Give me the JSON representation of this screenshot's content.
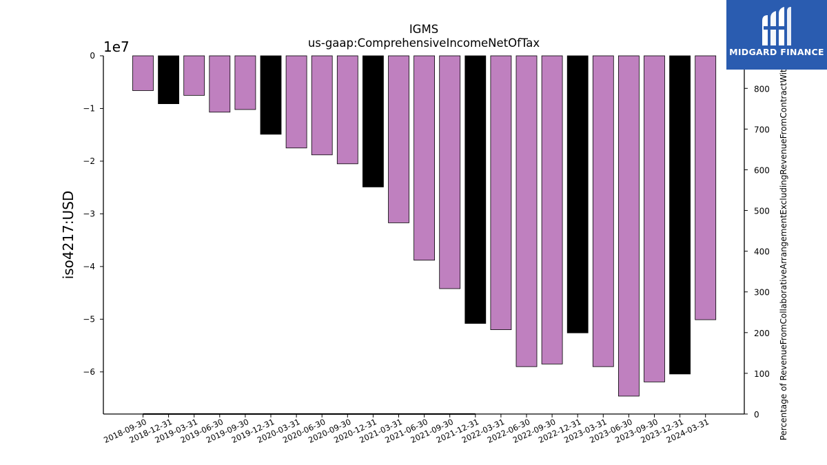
{
  "chart_data": {
    "type": "bar",
    "title": "IGMS",
    "subtitle": "us-gaap:ComprehensiveIncomeNetOfTax",
    "ylabel": "iso4217:USD",
    "y2label": "Percentage of RevenueFromCollaborativeArrangementExcludingRevenueFromContractWith",
    "offset_text": "1e7",
    "y_scale": 10000000,
    "ylim": [
      -68000000,
      0
    ],
    "yticks": [
      0,
      -1,
      -2,
      -3,
      -4,
      -5,
      -6
    ],
    "y2lim": [
      0,
      880
    ],
    "y2ticks": [
      0,
      100,
      200,
      300,
      400,
      500,
      600,
      700,
      800
    ],
    "categories": [
      "2018-09-30",
      "2018-12-31",
      "2019-03-31",
      "2019-06-30",
      "2019-09-30",
      "2019-12-31",
      "2020-03-31",
      "2020-06-30",
      "2020-09-30",
      "2020-12-31",
      "2021-03-31",
      "2021-06-30",
      "2021-09-30",
      "2021-12-31",
      "2022-03-31",
      "2022-06-30",
      "2022-09-30",
      "2022-12-31",
      "2023-03-31",
      "2023-06-30",
      "2023-09-30",
      "2023-12-31",
      "2024-03-31"
    ],
    "values": [
      -6600000,
      -9100000,
      -7500000,
      -10700000,
      -10200000,
      -14900000,
      -17500000,
      -18800000,
      -20500000,
      -24900000,
      -31700000,
      -38800000,
      -44200000,
      -50800000,
      -52000000,
      -59000000,
      -58500000,
      -52600000,
      -59000000,
      -64600000,
      -61900000,
      -60400000,
      -50100000
    ],
    "bar_colors": [
      "#bf80bf",
      "#000000",
      "#bf80bf",
      "#bf80bf",
      "#bf80bf",
      "#000000",
      "#bf80bf",
      "#bf80bf",
      "#bf80bf",
      "#000000",
      "#bf80bf",
      "#bf80bf",
      "#bf80bf",
      "#000000",
      "#bf80bf",
      "#bf80bf",
      "#bf80bf",
      "#000000",
      "#bf80bf",
      "#bf80bf",
      "#bf80bf",
      "#000000",
      "#bf80bf"
    ],
    "secondary_series_values": [
      0,
      0,
      0,
      0,
      0,
      0,
      0,
      0,
      0,
      0,
      0,
      0,
      0,
      0
    ],
    "grid": false
  },
  "logo": {
    "text": "MIDGARD FINANCE",
    "color": "#2a5cb0"
  }
}
